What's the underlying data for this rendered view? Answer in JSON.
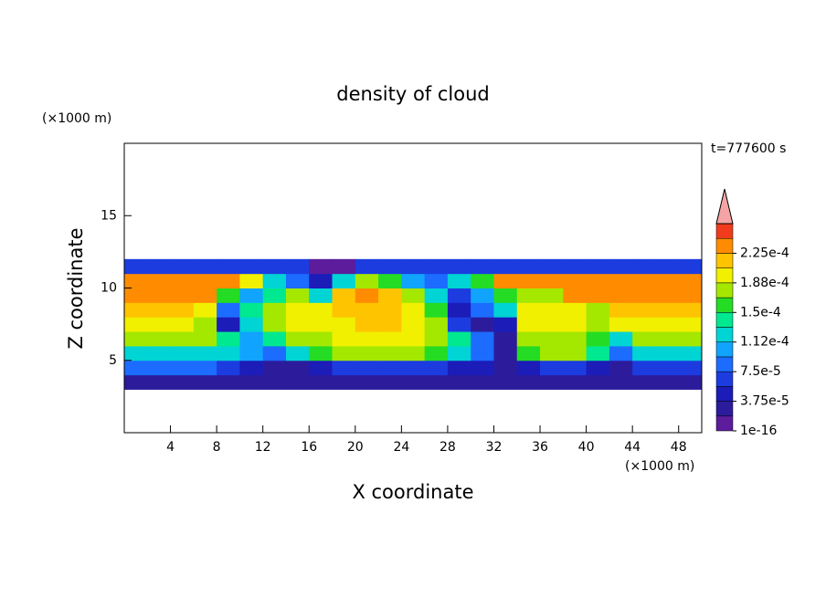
{
  "chart_data": {
    "type": "contour",
    "title": "density of cloud",
    "x_label": "X coordinate",
    "y_label": "Z coordinate",
    "x_unit": "(×1000 m)",
    "y_unit": "(×1000 m)",
    "time_label": "t=777600 s",
    "xlim": [
      0,
      50
    ],
    "ylim": [
      0,
      20
    ],
    "xticks": [
      4,
      8,
      12,
      16,
      20,
      24,
      28,
      32,
      36,
      40,
      44,
      48
    ],
    "yticks": [
      5,
      10,
      15
    ],
    "x": [
      1,
      3,
      5,
      7,
      9,
      11,
      13,
      15,
      17,
      19,
      21,
      23,
      25,
      27,
      29,
      31,
      33,
      35,
      37,
      39,
      41,
      43,
      45,
      47,
      49
    ],
    "z_levels": [
      3.5,
      4.5,
      5.5,
      6.5,
      7.5,
      8.5,
      9.5,
      10.5,
      11.5
    ],
    "density": [
      [
        2e-05,
        2e-05,
        2e-05,
        2e-05,
        2e-05,
        2e-05,
        2e-05,
        2e-05,
        2e-05,
        2e-05,
        2e-05,
        2e-05,
        2e-05,
        2e-05,
        2e-05,
        2e-05,
        2e-05,
        2e-05,
        2e-05,
        2e-05,
        2e-05,
        2e-05,
        2e-05,
        2e-05,
        2e-05
      ],
      [
        8e-05,
        8e-05,
        8e-05,
        8e-05,
        7e-05,
        5e-05,
        3e-05,
        3e-05,
        5e-05,
        6e-05,
        7e-05,
        7e-05,
        7e-05,
        6e-05,
        5e-05,
        4e-05,
        2e-05,
        5e-05,
        6e-05,
        6e-05,
        5e-05,
        3e-05,
        6e-05,
        7e-05,
        7e-05
      ],
      [
        0.00013,
        0.00013,
        0.00013,
        0.00013,
        0.00012,
        0.0001,
        8e-05,
        0.00013,
        0.00016,
        0.00017,
        0.00018,
        0.00018,
        0.00017,
        0.00016,
        0.00013,
        9e-05,
        3e-05,
        0.00016,
        0.00017,
        0.00017,
        0.00014,
        9e-05,
        0.00013,
        0.00013,
        0.00013
      ],
      [
        0.00018,
        0.00018,
        0.00018,
        0.00017,
        0.00014,
        0.0001,
        0.00014,
        0.00017,
        0.00018,
        0.00019,
        0.00019,
        0.00019,
        0.00019,
        0.00018,
        0.00014,
        9e-05,
        2e-05,
        0.00018,
        0.00018,
        0.00018,
        0.00016,
        0.00013,
        0.00018,
        0.00018,
        0.00018
      ],
      [
        0.0002,
        0.0002,
        0.0002,
        0.00017,
        5e-05,
        0.00012,
        0.00018,
        0.00019,
        0.00019,
        0.0002,
        0.00021,
        0.00021,
        0.0002,
        0.00017,
        7e-05,
        3e-05,
        4e-05,
        0.00019,
        0.00019,
        0.00019,
        0.00017,
        0.00019,
        0.0002,
        0.0002,
        0.0002
      ],
      [
        0.00022,
        0.00022,
        0.00022,
        0.00019,
        9e-05,
        0.00014,
        0.00018,
        0.00019,
        0.0002,
        0.00021,
        0.00022,
        0.00022,
        0.0002,
        0.00015,
        4e-05,
        9e-05,
        0.00012,
        0.0002,
        0.0002,
        0.0002,
        0.00018,
        0.00021,
        0.00022,
        0.00022,
        0.00022
      ],
      [
        0.00024,
        0.00024,
        0.00024,
        0.00024,
        0.00016,
        0.0001,
        0.00014,
        0.00017,
        0.00012,
        0.00021,
        0.00023,
        0.00022,
        0.00018,
        0.00012,
        6e-05,
        0.00011,
        0.00016,
        0.00018,
        0.00017,
        0.00023,
        0.00023,
        0.00023,
        0.00023,
        0.00023,
        0.00023
      ],
      [
        0.00023,
        0.00023,
        0.00023,
        0.00023,
        0.00023,
        0.00019,
        0.00012,
        8e-05,
        5e-05,
        0.00013,
        0.00018,
        0.00016,
        0.00011,
        9e-05,
        0.00013,
        0.00016,
        0.00024,
        0.00024,
        0.00024,
        0.00024,
        0.00024,
        0.00024,
        0.00024,
        0.00024,
        0.00024
      ],
      [
        6e-05,
        6e-05,
        6e-05,
        6e-05,
        6e-05,
        6e-05,
        6e-05,
        6e-05,
        1e-05,
        1e-05,
        6e-05,
        6e-05,
        6e-05,
        6e-05,
        6e-05,
        6e-05,
        6e-05,
        6e-05,
        6e-05,
        6e-05,
        6e-05,
        6e-05,
        6e-05,
        6e-05,
        6e-05
      ]
    ],
    "colorbar": {
      "levels": [
        1e-16,
        1.875e-05,
        3.75e-05,
        5.625e-05,
        7.5e-05,
        9.375e-05,
        0.0001125,
        0.00013125,
        0.00015,
        0.00016875,
        0.0001875,
        0.00020625,
        0.000225,
        0.00024375,
        0.0002625
      ],
      "colors": [
        "#5c1c9c",
        "#2c1c9c",
        "#1c1cb8",
        "#1c3ce0",
        "#1c6cff",
        "#10a4ff",
        "#00d4d4",
        "#00e890",
        "#24dc24",
        "#a4e800",
        "#f0f000",
        "#ffc400",
        "#ff8c00",
        "#f03c1c"
      ],
      "extend_color": "#f4a4a4",
      "ticks": [
        {
          "value": 1e-16,
          "label": "1e-16"
        },
        {
          "value": 3.75e-05,
          "label": "3.75e-5"
        },
        {
          "value": 7.5e-05,
          "label": "7.5e-5"
        },
        {
          "value": 0.0001125,
          "label": "1.12e-4"
        },
        {
          "value": 0.00015,
          "label": "1.5e-4"
        },
        {
          "value": 0.0001875,
          "label": "1.88e-4"
        },
        {
          "value": 0.000225,
          "label": "2.25e-4"
        }
      ]
    }
  }
}
